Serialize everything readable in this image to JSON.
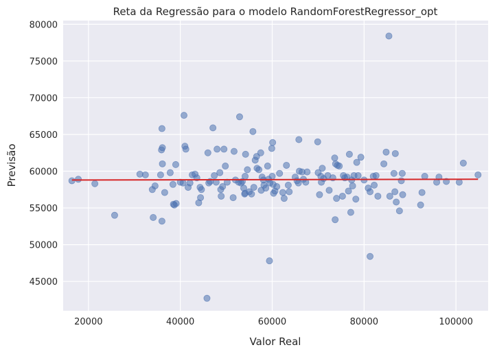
{
  "chart_data": {
    "type": "scatter",
    "title": "Reta da Regressão para o modelo RandomForestRegressor_opt",
    "xlabel": "Valor Real",
    "ylabel": "Previsão",
    "xlim": [
      14500,
      107000
    ],
    "ylim": [
      41000,
      80500
    ],
    "xticks": [
      20000,
      40000,
      60000,
      80000,
      100000
    ],
    "yticks": [
      45000,
      50000,
      55000,
      60000,
      65000,
      70000,
      75000,
      80000
    ],
    "xtick_labels": [
      "20000",
      "40000",
      "60000",
      "80000",
      "100000"
    ],
    "ytick_labels": [
      "45000",
      "50000",
      "55000",
      "60000",
      "65000",
      "70000",
      "75000",
      "80000"
    ],
    "grid": true,
    "background": "#eaeaf2",
    "point_color": "#4c72b0",
    "line_color": "#d62728",
    "regression_line": {
      "x": [
        16400,
        104800
      ],
      "y": [
        58800,
        58900
      ]
    },
    "series": [
      {
        "points": [
          [
            16400,
            58700
          ],
          [
            17800,
            58900
          ],
          [
            21400,
            58300
          ],
          [
            25700,
            54000
          ],
          [
            31200,
            59600
          ],
          [
            32400,
            59500
          ],
          [
            33900,
            57500
          ],
          [
            34100,
            53700
          ],
          [
            34500,
            58000
          ],
          [
            35700,
            59500
          ],
          [
            35900,
            62900
          ],
          [
            36100,
            63200
          ],
          [
            36000,
            65800
          ],
          [
            36100,
            61000
          ],
          [
            36000,
            53200
          ],
          [
            36600,
            57100
          ],
          [
            37800,
            59800
          ],
          [
            38400,
            58200
          ],
          [
            38500,
            55500
          ],
          [
            38700,
            55400
          ],
          [
            39000,
            60900
          ],
          [
            39100,
            55600
          ],
          [
            40000,
            58500
          ],
          [
            40600,
            58400
          ],
          [
            40800,
            67600
          ],
          [
            41000,
            63400
          ],
          [
            41200,
            63000
          ],
          [
            41700,
            57800
          ],
          [
            42100,
            58400
          ],
          [
            42600,
            59500
          ],
          [
            43200,
            59600
          ],
          [
            43600,
            59100
          ],
          [
            44000,
            55700
          ],
          [
            44300,
            57800
          ],
          [
            44400,
            56400
          ],
          [
            44600,
            57500
          ],
          [
            45800,
            42700
          ],
          [
            46000,
            62500
          ],
          [
            46200,
            58400
          ],
          [
            46500,
            58600
          ],
          [
            47100,
            65900
          ],
          [
            47400,
            59400
          ],
          [
            47800,
            58500
          ],
          [
            48000,
            63000
          ],
          [
            48600,
            59800
          ],
          [
            48800,
            57500
          ],
          [
            48900,
            56600
          ],
          [
            49200,
            57900
          ],
          [
            49500,
            63000
          ],
          [
            49800,
            60700
          ],
          [
            50200,
            58500
          ],
          [
            51500,
            56400
          ],
          [
            51700,
            62700
          ],
          [
            52000,
            58800
          ],
          [
            52700,
            58500
          ],
          [
            52900,
            67400
          ],
          [
            53200,
            58400
          ],
          [
            53500,
            58600
          ],
          [
            53800,
            57700
          ],
          [
            54000,
            56900
          ],
          [
            54100,
            57000
          ],
          [
            54100,
            59300
          ],
          [
            54200,
            62300
          ],
          [
            54600,
            60200
          ],
          [
            55000,
            57200
          ],
          [
            55500,
            56900
          ],
          [
            55800,
            65400
          ],
          [
            56000,
            57800
          ],
          [
            56300,
            61500
          ],
          [
            56600,
            62000
          ],
          [
            56700,
            60400
          ],
          [
            57100,
            60200
          ],
          [
            57500,
            62500
          ],
          [
            57600,
            57400
          ],
          [
            57800,
            59200
          ],
          [
            58100,
            58800
          ],
          [
            58200,
            58100
          ],
          [
            58600,
            57700
          ],
          [
            59000,
            60700
          ],
          [
            59200,
            58900
          ],
          [
            59400,
            47800
          ],
          [
            59500,
            58400
          ],
          [
            59900,
            63100
          ],
          [
            60100,
            63900
          ],
          [
            60000,
            59300
          ],
          [
            60200,
            58200
          ],
          [
            60300,
            57000
          ],
          [
            60600,
            57300
          ],
          [
            61000,
            57900
          ],
          [
            61600,
            59700
          ],
          [
            62300,
            57100
          ],
          [
            62600,
            56300
          ],
          [
            63100,
            60800
          ],
          [
            63500,
            58100
          ],
          [
            63700,
            57200
          ],
          [
            65000,
            59200
          ],
          [
            65400,
            58700
          ],
          [
            65800,
            64300
          ],
          [
            65700,
            58400
          ],
          [
            65900,
            60000
          ],
          [
            66500,
            59900
          ],
          [
            66800,
            58900
          ],
          [
            67300,
            58500
          ],
          [
            67600,
            59900
          ],
          [
            69900,
            64000
          ],
          [
            70000,
            59800
          ],
          [
            70300,
            56800
          ],
          [
            70600,
            59300
          ],
          [
            70700,
            58500
          ],
          [
            70900,
            60400
          ],
          [
            71200,
            59000
          ],
          [
            72100,
            59400
          ],
          [
            72400,
            57400
          ],
          [
            73200,
            59100
          ],
          [
            73600,
            61800
          ],
          [
            73700,
            53400
          ],
          [
            73800,
            61000
          ],
          [
            74000,
            56300
          ],
          [
            74200,
            60800
          ],
          [
            74600,
            60700
          ],
          [
            75300,
            56600
          ],
          [
            75500,
            59400
          ],
          [
            75800,
            59100
          ],
          [
            76300,
            59200
          ],
          [
            76600,
            57300
          ],
          [
            76800,
            62300
          ],
          [
            77100,
            54400
          ],
          [
            77300,
            58800
          ],
          [
            77500,
            58000
          ],
          [
            77800,
            59400
          ],
          [
            78200,
            56200
          ],
          [
            78400,
            61200
          ],
          [
            78700,
            59400
          ],
          [
            79300,
            61900
          ],
          [
            80000,
            58800
          ],
          [
            80900,
            57700
          ],
          [
            81300,
            57200
          ],
          [
            81300,
            48400
          ],
          [
            82000,
            59300
          ],
          [
            82200,
            58100
          ],
          [
            82600,
            59400
          ],
          [
            83000,
            56600
          ],
          [
            84300,
            61000
          ],
          [
            84800,
            62600
          ],
          [
            85400,
            78400
          ],
          [
            85600,
            56600
          ],
          [
            86500,
            59700
          ],
          [
            86700,
            57200
          ],
          [
            86800,
            62400
          ],
          [
            87000,
            55800
          ],
          [
            87700,
            54600
          ],
          [
            88100,
            58700
          ],
          [
            88300,
            59700
          ],
          [
            88400,
            56800
          ],
          [
            92300,
            55400
          ],
          [
            92600,
            57100
          ],
          [
            93200,
            59300
          ],
          [
            95800,
            58500
          ],
          [
            96300,
            59200
          ],
          [
            97900,
            58600
          ],
          [
            100700,
            58500
          ],
          [
            101600,
            61100
          ],
          [
            104800,
            59500
          ]
        ]
      }
    ]
  }
}
